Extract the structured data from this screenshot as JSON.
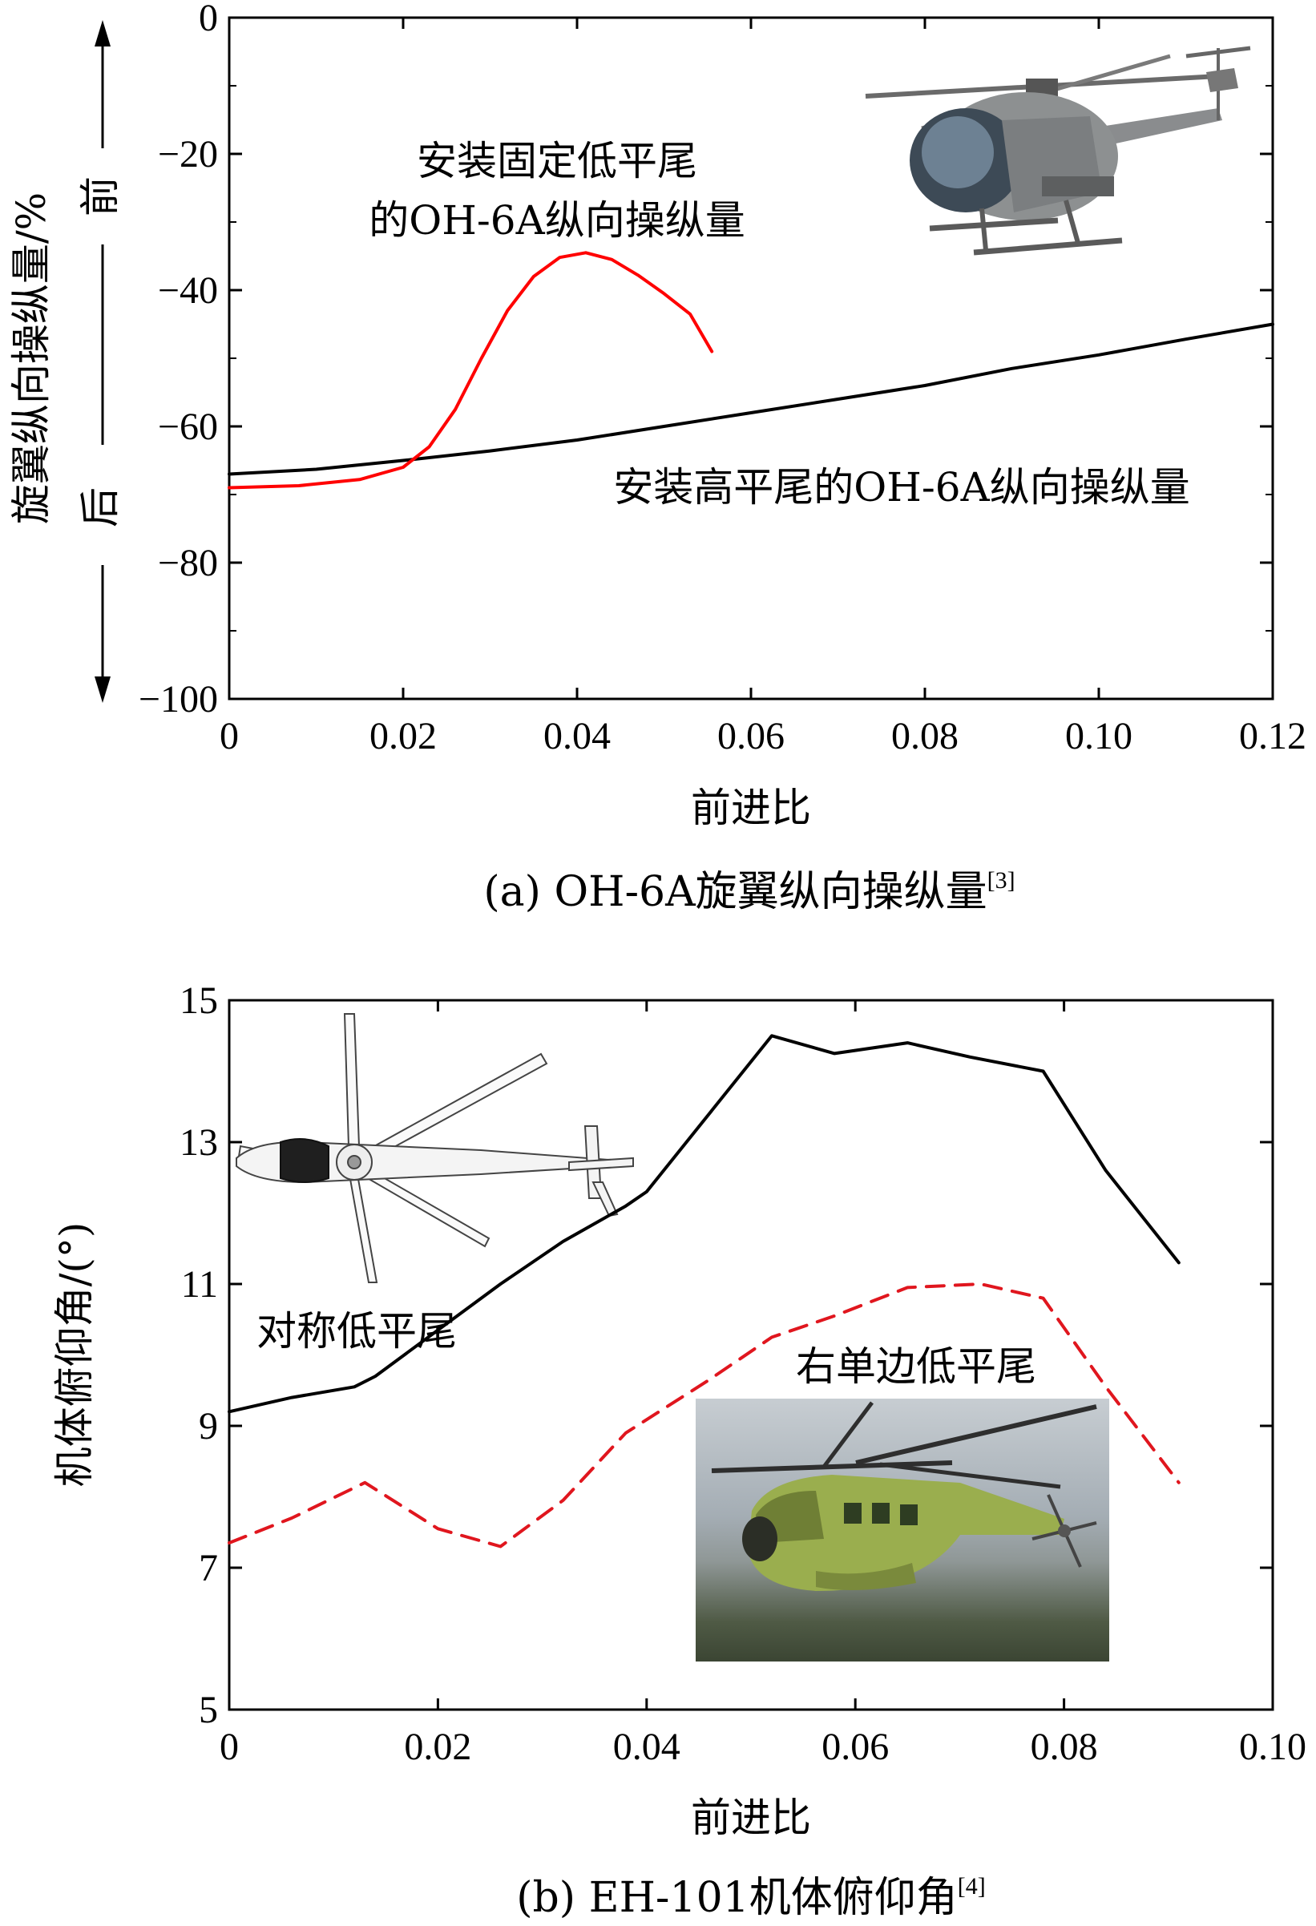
{
  "chart_data": [
    {
      "type": "line",
      "caption": "(a) OH-6A旋翼纵向操纵量",
      "caption_ref": "[3]",
      "xlabel": "前进比",
      "ylabel": "旋翼纵向操纵量/%",
      "direction_labels": {
        "forward": "前",
        "backward": "后"
      },
      "xlim": [
        0,
        0.12
      ],
      "ylim": [
        -100,
        0
      ],
      "x_ticks": [
        "0",
        "0.02",
        "0.04",
        "0.06",
        "0.08",
        "0.10",
        "0.12"
      ],
      "x_tick_values": [
        0,
        0.02,
        0.04,
        0.06,
        0.08,
        0.1,
        0.12
      ],
      "y_ticks": [
        "0",
        "−20",
        "−40",
        "−60",
        "−80",
        "−100"
      ],
      "y_tick_values": [
        0,
        -20,
        -40,
        -60,
        -80,
        -100
      ],
      "series": [
        {
          "color": "#000000",
          "style": "solid",
          "x": [
            0,
            0.01,
            0.02,
            0.03,
            0.04,
            0.05,
            0.06,
            0.07,
            0.08,
            0.09,
            0.1,
            0.11,
            0.12
          ],
          "y": [
            -67,
            -66.3,
            -65,
            -63.6,
            -62,
            -60,
            -58,
            -56,
            -54,
            -51.5,
            -49.5,
            -47.2,
            -45
          ]
        },
        {
          "color": "#ff0000",
          "style": "solid",
          "x": [
            0,
            0.008,
            0.015,
            0.02,
            0.023,
            0.026,
            0.029,
            0.032,
            0.035,
            0.038,
            0.041,
            0.044,
            0.047,
            0.05,
            0.053,
            0.0555
          ],
          "y": [
            -69,
            -68.7,
            -67.8,
            -66,
            -63,
            -57.5,
            -50,
            -43,
            -38,
            -35.2,
            -34.5,
            -35.5,
            -37.8,
            -40.5,
            -43.5,
            -49
          ]
        }
      ],
      "annotations": [
        {
          "text_line1": "安装固定低平尾",
          "text_line2": "的OH-6A纵向操纵量",
          "color": "#000000"
        },
        {
          "text": "安装高平尾的OH-6A纵向操纵量",
          "color": "#000000"
        }
      ],
      "image": "helicopter-oh6a-photo"
    },
    {
      "type": "line",
      "caption": "(b) EH-101机体俯仰角",
      "caption_ref": "[4]",
      "xlabel": "前进比",
      "ylabel": "机体俯仰角/(°)",
      "xlim": [
        0,
        0.1
      ],
      "ylim": [
        5,
        15
      ],
      "x_ticks": [
        "0",
        "0.02",
        "0.04",
        "0.06",
        "0.08",
        "0.10"
      ],
      "x_tick_values": [
        0,
        0.02,
        0.04,
        0.06,
        0.08,
        0.1
      ],
      "y_ticks": [
        "5",
        "7",
        "9",
        "11",
        "13",
        "15"
      ],
      "y_tick_values": [
        5,
        7,
        9,
        11,
        13,
        15
      ],
      "series": [
        {
          "name": "对称低平尾",
          "color": "#000000",
          "style": "solid",
          "x": [
            0,
            0.006,
            0.012,
            0.014,
            0.02,
            0.026,
            0.032,
            0.038,
            0.04,
            0.046,
            0.052,
            0.058,
            0.065,
            0.071,
            0.078,
            0.084,
            0.091
          ],
          "y": [
            9.2,
            9.4,
            9.55,
            9.7,
            10.35,
            11.0,
            11.6,
            12.1,
            12.3,
            13.4,
            14.5,
            14.25,
            14.4,
            14.2,
            14.0,
            12.6,
            11.3
          ]
        },
        {
          "name": "右单边低平尾",
          "color": "#e0161e",
          "style": "dashed",
          "x": [
            0,
            0.006,
            0.013,
            0.02,
            0.026,
            0.032,
            0.038,
            0.046,
            0.052,
            0.058,
            0.065,
            0.072,
            0.078,
            0.084,
            0.091
          ],
          "y": [
            7.35,
            7.7,
            8.2,
            7.55,
            7.3,
            7.95,
            8.9,
            9.65,
            10.25,
            10.55,
            10.95,
            11.0,
            10.8,
            9.55,
            8.2
          ]
        }
      ],
      "image_top": "eh101-planform-drawing",
      "image_photo": "eh101-flight-photo"
    }
  ]
}
